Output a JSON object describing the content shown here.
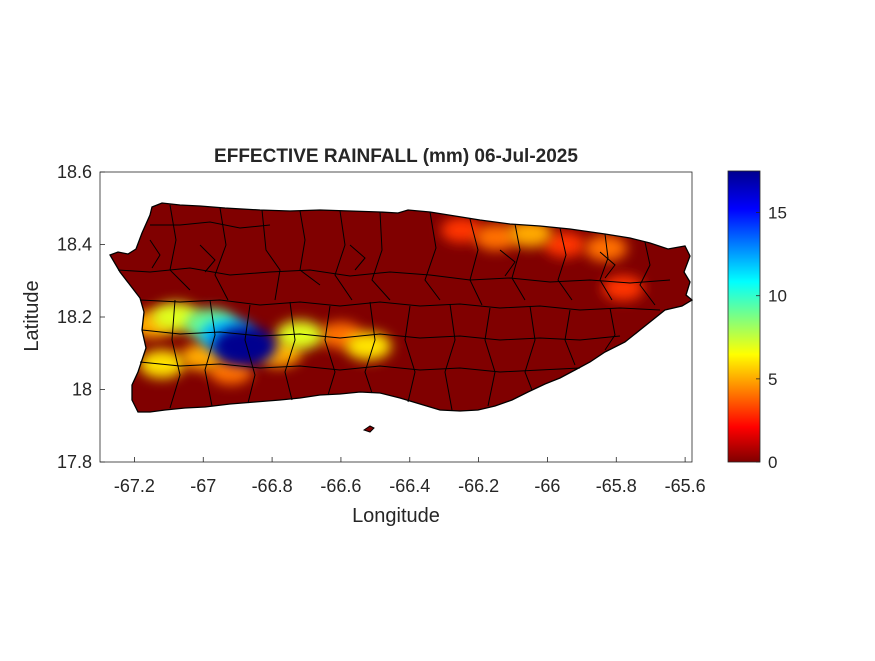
{
  "title": "EFFECTIVE RAINFALL (mm) 06-Jul-2025",
  "axes": {
    "xlabel": "Longitude",
    "ylabel": "Latitude",
    "xlim": [
      -67.3,
      -65.58
    ],
    "ylim": [
      17.8,
      18.6
    ],
    "xticks": [
      -67.2,
      -67,
      -66.8,
      -66.6,
      -66.4,
      -66.2,
      -66,
      -65.8,
      -65.6
    ],
    "xtick_labels": [
      "-67.2",
      "-67",
      "-66.8",
      "-66.6",
      "-66.4",
      "-66.2",
      "-66",
      "-65.8",
      "-65.6"
    ],
    "yticks": [
      17.8,
      18,
      18.2,
      18.4,
      18.6
    ],
    "ytick_labels": [
      "17.8",
      "18",
      "18.2",
      "18.4",
      "18.6"
    ]
  },
  "colorbar": {
    "colormap": "jet",
    "range": [
      0,
      17.5
    ],
    "ticks": [
      0,
      5,
      10,
      15
    ],
    "tick_labels": [
      "0",
      "5",
      "10",
      "15"
    ]
  },
  "map": {
    "region": "Puerto Rico",
    "background_value_color": "#800000",
    "boundary_color": "#000000",
    "rainfall_cells": [
      {
        "lon": -66.88,
        "lat": 18.12,
        "value": 17.5
      },
      {
        "lon": -66.93,
        "lat": 18.15,
        "value": 12
      },
      {
        "lon": -66.98,
        "lat": 18.18,
        "value": 9
      },
      {
        "lon": -67.08,
        "lat": 18.2,
        "value": 7
      },
      {
        "lon": -67.15,
        "lat": 18.18,
        "value": 5
      },
      {
        "lon": -67.12,
        "lat": 18.07,
        "value": 6
      },
      {
        "lon": -67.0,
        "lat": 18.09,
        "value": 5
      },
      {
        "lon": -66.92,
        "lat": 18.05,
        "value": 4
      },
      {
        "lon": -66.78,
        "lat": 18.1,
        "value": 5
      },
      {
        "lon": -66.72,
        "lat": 18.15,
        "value": 7
      },
      {
        "lon": -66.6,
        "lat": 18.15,
        "value": 4
      },
      {
        "lon": -66.52,
        "lat": 18.12,
        "value": 6
      },
      {
        "lon": -66.25,
        "lat": 18.44,
        "value": 3
      },
      {
        "lon": -66.15,
        "lat": 18.42,
        "value": 4
      },
      {
        "lon": -66.05,
        "lat": 18.43,
        "value": 5
      },
      {
        "lon": -65.95,
        "lat": 18.4,
        "value": 3
      },
      {
        "lon": -65.83,
        "lat": 18.39,
        "value": 4
      },
      {
        "lon": -65.78,
        "lat": 18.28,
        "value": 3
      }
    ]
  }
}
